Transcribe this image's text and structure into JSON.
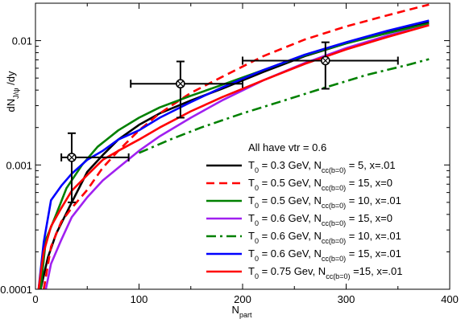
{
  "chart_data": {
    "type": "line",
    "xlabel": "N_part",
    "ylabel": "dN_J/ψ /dy",
    "xscale": "linear",
    "yscale": "log",
    "xlim": [
      0,
      400
    ],
    "ylim": [
      0.0001,
      0.02
    ],
    "x_ticks": [
      {
        "value": 0,
        "label": "0"
      },
      {
        "value": 100,
        "label": "100"
      },
      {
        "value": 200,
        "label": "200"
      },
      {
        "value": 300,
        "label": "300"
      },
      {
        "value": 400,
        "label": "400"
      }
    ],
    "y_ticks": [
      {
        "value": 0.0001,
        "label": "0.0001"
      },
      {
        "value": 0.001,
        "label": "0.001"
      },
      {
        "value": 0.01,
        "label": "0.01"
      }
    ],
    "grid": false,
    "legend_header": "All have vtr = 0.6",
    "legend_position": "bottom-right",
    "series": [
      {
        "name": "T_0 = 0.3 GeV, N_cc(b=0) = 5, x=.01",
        "color": "#000000",
        "dash": "solid",
        "x": [
          5,
          12,
          20,
          35,
          50,
          65,
          80,
          100,
          120,
          150,
          180,
          220,
          260,
          300,
          340,
          380
        ],
        "y": [
          0.0001,
          0.00018,
          0.00028,
          0.0005,
          0.00088,
          0.0012,
          0.0016,
          0.0021,
          0.0026,
          0.0033,
          0.0041,
          0.0056,
          0.0075,
          0.0095,
          0.0118,
          0.014
        ]
      },
      {
        "name": "T_0 = 0.5 GeV, N_cc(b=0) = 15,  x=0",
        "color": "#ff0000",
        "dash": "dashed",
        "x": [
          8,
          15,
          25,
          35,
          50,
          65,
          80,
          100,
          120,
          150,
          180,
          220,
          260,
          300,
          340,
          380
        ],
        "y": [
          0.0001,
          0.00022,
          0.00035,
          0.00045,
          0.00063,
          0.00095,
          0.0013,
          0.0019,
          0.0026,
          0.0038,
          0.0051,
          0.0075,
          0.0102,
          0.013,
          0.016,
          0.0195
        ]
      },
      {
        "name": "T_0 = 0.5 GeV, N_cc(b=0) = 10, x=.01",
        "color": "#008000",
        "dash": "solid",
        "x": [
          5,
          10,
          20,
          30,
          45,
          60,
          80,
          100,
          120,
          150,
          180,
          220,
          260,
          300,
          340,
          380
        ],
        "y": [
          0.0001,
          0.00025,
          0.0004,
          0.00065,
          0.001,
          0.0014,
          0.0019,
          0.0024,
          0.0029,
          0.0036,
          0.0044,
          0.0058,
          0.0076,
          0.0095,
          0.0115,
          0.0137
        ]
      },
      {
        "name": "T_0 = 0.6 GeV, N_cc(b=0) = 15, x=0",
        "color": "#a020f0",
        "dash": "solid",
        "x": [
          10,
          15,
          25,
          35,
          50,
          65,
          80,
          100,
          120,
          150,
          180,
          220,
          260,
          300,
          340,
          380
        ],
        "y": [
          0.0001,
          0.00016,
          0.00025,
          0.00038,
          0.00055,
          0.00075,
          0.00095,
          0.0013,
          0.0017,
          0.0024,
          0.0033,
          0.0048,
          0.0066,
          0.0087,
          0.011,
          0.0133
        ]
      },
      {
        "name": "T_0 = 0.6 GeV, N_cc(b=0) = 10, x=.01",
        "color": "#008000",
        "dash": "dashdot",
        "x": [
          100,
          130,
          160,
          200,
          240,
          280,
          320,
          360,
          380
        ],
        "y": [
          0.00125,
          0.0016,
          0.002,
          0.0026,
          0.0033,
          0.0042,
          0.0053,
          0.0064,
          0.0071
        ]
      },
      {
        "name": "T_0 = 0.6 GeV, N_cc(b=0) = 15, x=.01",
        "color": "#0000ff",
        "dash": "solid",
        "x": [
          3,
          8,
          15,
          25,
          35,
          50,
          65,
          80,
          100,
          120,
          150,
          180,
          220,
          260,
          300,
          340,
          380
        ],
        "y": [
          0.0001,
          0.00024,
          0.00052,
          0.00068,
          0.00085,
          0.0011,
          0.0013,
          0.0016,
          0.0019,
          0.0024,
          0.0032,
          0.0042,
          0.0058,
          0.0077,
          0.0097,
          0.012,
          0.0145
        ]
      },
      {
        "name": "T_0 = 0.75 Gev, N_cc(b=0) =15, x=.01",
        "color": "#ff0000",
        "dash": "solid",
        "x": [
          3,
          8,
          15,
          25,
          35,
          50,
          65,
          80,
          100,
          120,
          150,
          180,
          220,
          260,
          300,
          340,
          380
        ],
        "y": [
          0.0001,
          0.0002,
          0.00032,
          0.00045,
          0.00062,
          0.00083,
          0.0011,
          0.0013,
          0.0016,
          0.002,
          0.0027,
          0.0035,
          0.0048,
          0.0065,
          0.0085,
          0.0107,
          0.0133
        ]
      }
    ],
    "data_points": [
      {
        "x": 35,
        "y": 0.00115,
        "xerr": [
          25,
          90
        ],
        "yerr": [
          0.0005,
          0.0018
        ]
      },
      {
        "x": 140,
        "y": 0.0045,
        "xerr": [
          92,
          200
        ],
        "yerr": [
          0.0024,
          0.0068
        ]
      },
      {
        "x": 280,
        "y": 0.0069,
        "xerr": [
          200,
          350
        ],
        "yerr": [
          0.0041,
          0.0097
        ]
      }
    ]
  }
}
